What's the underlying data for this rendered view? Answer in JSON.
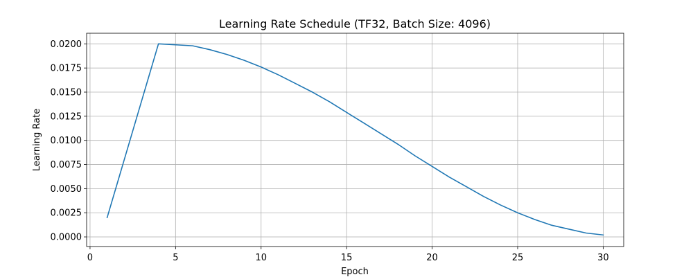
{
  "chart_data": {
    "type": "line",
    "title": "Learning Rate Schedule (TF32, Batch Size: 4096)",
    "xlabel": "Epoch",
    "ylabel": "Learning Rate",
    "xlim": [
      -0.2,
      31.2
    ],
    "ylim": [
      -0.001,
      0.0211
    ],
    "grid": true,
    "x_ticks": [
      0,
      5,
      10,
      15,
      20,
      25,
      30
    ],
    "x_tick_labels": [
      "0",
      "5",
      "10",
      "15",
      "20",
      "25",
      "30"
    ],
    "y_ticks": [
      0.0,
      0.0025,
      0.005,
      0.0075,
      0.01,
      0.0125,
      0.015,
      0.0175,
      0.02
    ],
    "y_tick_labels": [
      "0.0000",
      "0.0025",
      "0.0050",
      "0.0075",
      "0.0100",
      "0.0125",
      "0.0150",
      "0.0175",
      "0.0200"
    ],
    "series": [
      {
        "color": "#1f77b4",
        "x": [
          1,
          2,
          3,
          4,
          5,
          6,
          7,
          8,
          9,
          10,
          11,
          12,
          13,
          14,
          15,
          16,
          17,
          18,
          19,
          20,
          21,
          22,
          23,
          24,
          25,
          26,
          27,
          28,
          29,
          30
        ],
        "y": [
          0.002,
          0.008,
          0.014,
          0.02,
          0.0199,
          0.0198,
          0.0194,
          0.0189,
          0.0183,
          0.0176,
          0.0168,
          0.0159,
          0.015,
          0.014,
          0.0129,
          0.0118,
          0.0107,
          0.0096,
          0.0084,
          0.0073,
          0.0062,
          0.0052,
          0.0042,
          0.0033,
          0.0025,
          0.0018,
          0.0012,
          0.0008,
          0.0004,
          0.0002
        ]
      }
    ]
  }
}
